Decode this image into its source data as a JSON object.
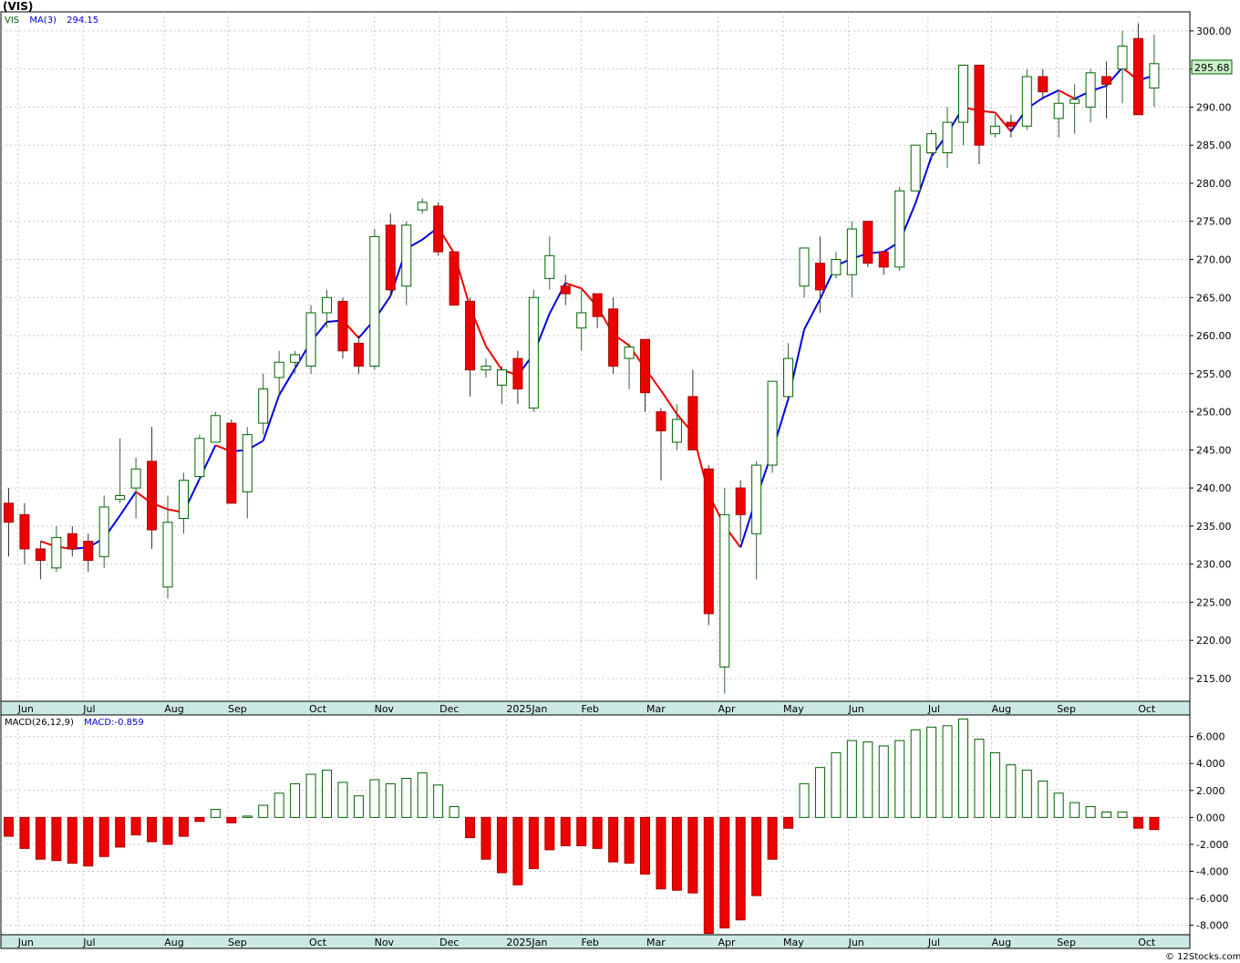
{
  "chart_data": [
    {
      "type": "candlestick",
      "symbol": "(VIS)",
      "legend": [
        {
          "label": "VIS",
          "color": "#006400"
        },
        {
          "label": "MA(3)",
          "color": "#0000cc"
        },
        {
          "label": "294.15",
          "color": "#0000cc"
        }
      ],
      "last_price_label": "295.68",
      "ylim": [
        212,
        302.5
      ],
      "yticks": [
        215,
        220,
        225,
        230,
        235,
        240,
        245,
        250,
        255,
        260,
        265,
        270,
        275,
        280,
        285,
        290,
        295,
        300
      ],
      "ytick_labels": [
        "215.00",
        "220.00",
        "225.00",
        "230.00",
        "235.00",
        "240.00",
        "245.00",
        "250.00",
        "255.00",
        "260.00",
        "265.00",
        "270.00",
        "275.00",
        "280.00",
        "285.00",
        "290.00",
        "295.00",
        "300.00"
      ],
      "x_months": [
        {
          "label": "Jun",
          "week": 0.7
        },
        {
          "label": "Jul",
          "week": 4.8
        },
        {
          "label": "Aug",
          "week": 9.9
        },
        {
          "label": "Sep",
          "week": 13.9
        },
        {
          "label": "Oct",
          "week": 19.0
        },
        {
          "label": "Nov",
          "week": 23.1
        },
        {
          "label": "Dec",
          "week": 27.2
        },
        {
          "label": "2025Jan",
          "week": 31.4
        },
        {
          "label": "Feb",
          "week": 36.1
        },
        {
          "label": "Mar",
          "week": 40.2
        },
        {
          "label": "Apr",
          "week": 44.7
        },
        {
          "label": "May",
          "week": 48.8
        },
        {
          "label": "Jun",
          "week": 52.9
        },
        {
          "label": "Jul",
          "week": 57.9
        },
        {
          "label": "Aug",
          "week": 61.9
        },
        {
          "label": "Sep",
          "week": 66.0
        },
        {
          "label": "Oct",
          "week": 71.1
        }
      ],
      "candles": [
        {
          "o": 238,
          "h": 240,
          "l": 231,
          "c": 235.5
        },
        {
          "o": 236.5,
          "h": 238,
          "l": 230,
          "c": 232
        },
        {
          "o": 232,
          "h": 233,
          "l": 228,
          "c": 230.5
        },
        {
          "o": 229.5,
          "h": 235,
          "l": 229,
          "c": 233.5
        },
        {
          "o": 234,
          "h": 235,
          "l": 231,
          "c": 232
        },
        {
          "o": 233,
          "h": 234,
          "l": 229,
          "c": 230.5
        },
        {
          "o": 231,
          "h": 239,
          "l": 229.5,
          "c": 237.5
        },
        {
          "o": 238.5,
          "h": 246.5,
          "l": 238,
          "c": 239
        },
        {
          "o": 240,
          "h": 244,
          "l": 236,
          "c": 242.5
        },
        {
          "o": 243.5,
          "h": 248,
          "l": 232,
          "c": 234.5
        },
        {
          "o": 227,
          "h": 239,
          "l": 225.5,
          "c": 235.5
        },
        {
          "o": 236,
          "h": 242,
          "l": 234,
          "c": 241
        },
        {
          "o": 241.5,
          "h": 247,
          "l": 241,
          "c": 246.5
        },
        {
          "o": 246,
          "h": 250,
          "l": 246,
          "c": 249.5
        },
        {
          "o": 248.5,
          "h": 249,
          "l": 238,
          "c": 238
        },
        {
          "o": 239.5,
          "h": 248,
          "l": 236,
          "c": 247
        },
        {
          "o": 248.5,
          "h": 255,
          "l": 247,
          "c": 253
        },
        {
          "o": 254.5,
          "h": 258,
          "l": 252,
          "c": 256.5
        },
        {
          "o": 256.5,
          "h": 258,
          "l": 255,
          "c": 257.5
        },
        {
          "o": 256,
          "h": 264,
          "l": 255,
          "c": 263
        },
        {
          "o": 263,
          "h": 266,
          "l": 261,
          "c": 265
        },
        {
          "o": 264.5,
          "h": 265,
          "l": 257,
          "c": 258
        },
        {
          "o": 259,
          "h": 260,
          "l": 255,
          "c": 256
        },
        {
          "o": 256,
          "h": 274,
          "l": 255.5,
          "c": 273
        },
        {
          "o": 274.5,
          "h": 276,
          "l": 265,
          "c": 266
        },
        {
          "o": 266.5,
          "h": 275,
          "l": 264,
          "c": 274.5
        },
        {
          "o": 276.5,
          "h": 278,
          "l": 276,
          "c": 277.5
        },
        {
          "o": 277,
          "h": 277.5,
          "l": 270.5,
          "c": 271
        },
        {
          "o": 271,
          "h": 271,
          "l": 264,
          "c": 264
        },
        {
          "o": 264.5,
          "h": 265,
          "l": 252,
          "c": 255.5
        },
        {
          "o": 255.5,
          "h": 257,
          "l": 254.5,
          "c": 256
        },
        {
          "o": 253.5,
          "h": 256,
          "l": 251,
          "c": 255.5
        },
        {
          "o": 257,
          "h": 258,
          "l": 251,
          "c": 253
        },
        {
          "o": 250.5,
          "h": 266,
          "l": 250,
          "c": 265
        },
        {
          "o": 267.5,
          "h": 273,
          "l": 266,
          "c": 270.5
        },
        {
          "o": 266.5,
          "h": 268,
          "l": 264,
          "c": 265.5
        },
        {
          "o": 261,
          "h": 266,
          "l": 258,
          "c": 263
        },
        {
          "o": 265.5,
          "h": 265.5,
          "l": 261,
          "c": 262.5
        },
        {
          "o": 263.5,
          "h": 265,
          "l": 255,
          "c": 256
        },
        {
          "o": 257,
          "h": 259,
          "l": 253,
          "c": 258.5
        },
        {
          "o": 259.5,
          "h": 259.5,
          "l": 250,
          "c": 252.5
        },
        {
          "o": 250,
          "h": 250.5,
          "l": 241,
          "c": 247.5
        },
        {
          "o": 246,
          "h": 251,
          "l": 245,
          "c": 249
        },
        {
          "o": 252,
          "h": 255.5,
          "l": 245,
          "c": 245
        },
        {
          "o": 242.5,
          "h": 243,
          "l": 222,
          "c": 223.5
        },
        {
          "o": 216.5,
          "h": 240,
          "l": 213,
          "c": 236.5
        },
        {
          "o": 240,
          "h": 241,
          "l": 233,
          "c": 236.5
        },
        {
          "o": 234,
          "h": 243.5,
          "l": 228,
          "c": 243
        },
        {
          "o": 243,
          "h": 254,
          "l": 242,
          "c": 254
        },
        {
          "o": 252,
          "h": 259,
          "l": 252,
          "c": 257
        },
        {
          "o": 266.5,
          "h": 271.5,
          "l": 265,
          "c": 271.5
        },
        {
          "o": 269.5,
          "h": 273,
          "l": 263,
          "c": 266
        },
        {
          "o": 268,
          "h": 271,
          "l": 267.5,
          "c": 270
        },
        {
          "o": 268,
          "h": 275,
          "l": 265,
          "c": 274
        },
        {
          "o": 275,
          "h": 275,
          "l": 269,
          "c": 269.5
        },
        {
          "o": 271,
          "h": 271,
          "l": 268,
          "c": 269
        },
        {
          "o": 269,
          "h": 279.5,
          "l": 268.5,
          "c": 279
        },
        {
          "o": 279,
          "h": 285,
          "l": 279,
          "c": 285
        },
        {
          "o": 284,
          "h": 287,
          "l": 283,
          "c": 286.5
        },
        {
          "o": 284,
          "h": 290,
          "l": 282,
          "c": 288
        },
        {
          "o": 288,
          "h": 295.5,
          "l": 285,
          "c": 295.5
        },
        {
          "o": 295.5,
          "h": 295.5,
          "l": 282.5,
          "c": 285
        },
        {
          "o": 286.5,
          "h": 289,
          "l": 286,
          "c": 287.5
        },
        {
          "o": 288,
          "h": 289,
          "l": 286,
          "c": 287.5
        },
        {
          "o": 287.5,
          "h": 295,
          "l": 287,
          "c": 294
        },
        {
          "o": 294,
          "h": 295,
          "l": 291,
          "c": 292
        },
        {
          "o": 288.5,
          "h": 292,
          "l": 286,
          "c": 290.5
        },
        {
          "o": 290.5,
          "h": 293,
          "l": 286.5,
          "c": 291
        },
        {
          "o": 290,
          "h": 295,
          "l": 288,
          "c": 294.5
        },
        {
          "o": 294,
          "h": 296,
          "l": 288.5,
          "c": 293
        },
        {
          "o": 295,
          "h": 300,
          "l": 290.5,
          "c": 298
        },
        {
          "o": 299,
          "h": 301,
          "l": 289,
          "c": 289
        },
        {
          "o": 292.5,
          "h": 299.5,
          "l": 290,
          "c": 295.7
        }
      ],
      "ma3": [
        null,
        null,
        233,
        232.3,
        232,
        232.2,
        233.4,
        236.4,
        239.5,
        238,
        237.2,
        236.8,
        241.2,
        245.6,
        244.8,
        245,
        246.2,
        252.2,
        255.7,
        259.2,
        261.8,
        262,
        259.7,
        262.1,
        265.2,
        271.4,
        272.6,
        274.2,
        270.8,
        263.7,
        258.6,
        255.5,
        254.8,
        257.6,
        262.9,
        266.9,
        266.2,
        263.8,
        260.2,
        258.7,
        255.7,
        252.8,
        249.7,
        247.2,
        239.2,
        235,
        232.2,
        238.7,
        244.8,
        251.7,
        260.8,
        264.8,
        269.2,
        270.1,
        270.8,
        271,
        272.3,
        277.4,
        283.5,
        286.5,
        290,
        289.5,
        289.3,
        286.8,
        289.8,
        291.2,
        292.2,
        291.1,
        292.1,
        292.8,
        295.2,
        293.5,
        294.15
      ]
    },
    {
      "type": "bar",
      "title": "MACD(26,12,9)",
      "legend": [
        {
          "label": "MACD(26,12,9)",
          "color": "#000000"
        },
        {
          "label": "MACD:-0.859",
          "color": "#0000cc"
        }
      ],
      "ylim": [
        -8.7,
        7.6
      ],
      "yticks": [
        -8,
        -6,
        -4,
        -2,
        0,
        2,
        4,
        6
      ],
      "ytick_labels": [
        "-8.000",
        "-6.000",
        "-4.000",
        "-2.000",
        "0.000",
        "2.000",
        "4.000",
        "6.000"
      ],
      "values": [
        -1.4,
        -2.3,
        -3.1,
        -3.2,
        -3.4,
        -3.6,
        -2.9,
        -2.2,
        -1.3,
        -1.8,
        -2.0,
        -1.4,
        -0.3,
        0.6,
        -0.4,
        0.1,
        0.9,
        1.8,
        2.5,
        3.2,
        3.5,
        2.6,
        1.6,
        2.8,
        2.5,
        2.9,
        3.3,
        2.4,
        0.8,
        -1.5,
        -3.1,
        -4.1,
        -5.0,
        -3.8,
        -2.4,
        -2.1,
        -2.1,
        -2.3,
        -3.3,
        -3.4,
        -4.2,
        -5.3,
        -5.4,
        -5.6,
        -8.6,
        -8.2,
        -7.6,
        -5.8,
        -3.1,
        -0.8,
        2.5,
        3.7,
        4.8,
        5.7,
        5.6,
        5.3,
        5.7,
        6.5,
        6.7,
        6.8,
        7.3,
        5.8,
        4.8,
        3.9,
        3.5,
        2.7,
        1.8,
        1.1,
        0.8,
        0.4,
        0.4,
        -0.8,
        -0.9
      ]
    }
  ],
  "footer": {
    "copyright": "© 12Stocks.com"
  }
}
